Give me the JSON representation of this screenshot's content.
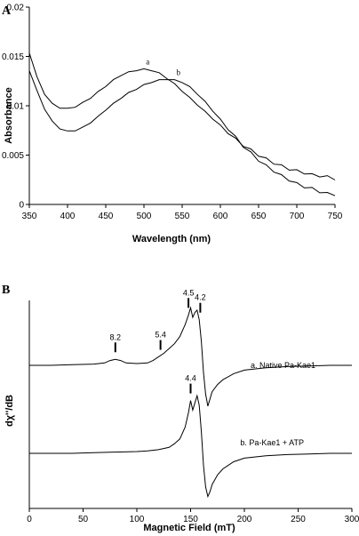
{
  "chart_data": [
    {
      "panel": "A",
      "type": "line",
      "xlabel": "Wavelength (nm)",
      "ylabel": "Absorbance",
      "xlim": [
        350,
        750
      ],
      "ylim": [
        0,
        0.02
      ],
      "xticks": [
        "350",
        "400",
        "450",
        "500",
        "550",
        "600",
        "650",
        "700",
        "750"
      ],
      "yticks": [
        "0",
        "0.005",
        "0.01",
        "0.015",
        "0.02"
      ],
      "grid": false,
      "series": [
        {
          "name": "a",
          "x": [
            350,
            360,
            370,
            380,
            390,
            400,
            410,
            420,
            430,
            440,
            450,
            460,
            470,
            480,
            490,
            500,
            510,
            520,
            530,
            540,
            550,
            560,
            570,
            580,
            590,
            600,
            610,
            620,
            630,
            640,
            650,
            660,
            670,
            680,
            690,
            700,
            710,
            720,
            730,
            740,
            750
          ],
          "values": [
            0.0154,
            0.0129,
            0.0112,
            0.0102,
            0.0098,
            0.0097,
            0.0099,
            0.0103,
            0.0108,
            0.0114,
            0.012,
            0.0126,
            0.0131,
            0.0134,
            0.0136,
            0.0137,
            0.0136,
            0.0133,
            0.0128,
            0.0122,
            0.0115,
            0.0108,
            0.0101,
            0.0094,
            0.0087,
            0.008,
            0.0073,
            0.0066,
            0.006,
            0.0055,
            0.005,
            0.0046,
            0.0042,
            0.0039,
            0.0036,
            0.0034,
            0.0032,
            0.003,
            0.0029,
            0.0028,
            0.0026
          ]
        },
        {
          "name": "b",
          "x": [
            350,
            360,
            370,
            380,
            390,
            400,
            410,
            420,
            430,
            440,
            450,
            460,
            470,
            480,
            490,
            500,
            510,
            520,
            530,
            540,
            550,
            560,
            570,
            580,
            590,
            600,
            610,
            620,
            630,
            640,
            650,
            660,
            670,
            680,
            690,
            700,
            710,
            720,
            730,
            740,
            750
          ],
          "values": [
            0.0136,
            0.0115,
            0.0097,
            0.0084,
            0.0077,
            0.0074,
            0.0075,
            0.0078,
            0.0083,
            0.0089,
            0.0096,
            0.0102,
            0.0108,
            0.0113,
            0.0117,
            0.0121,
            0.0124,
            0.0126,
            0.0127,
            0.0126,
            0.0124,
            0.0119,
            0.0112,
            0.0104,
            0.0095,
            0.0086,
            0.0077,
            0.0068,
            0.0059,
            0.0052,
            0.0045,
            0.0039,
            0.0034,
            0.0029,
            0.0025,
            0.0021,
            0.0018,
            0.0016,
            0.0013,
            0.0011,
            0.001
          ]
        }
      ],
      "annotations": [
        "a",
        "b"
      ]
    },
    {
      "panel": "B",
      "type": "line",
      "xlabel": "Magnetic Field (mT)",
      "ylabel": "dχ''/dB",
      "xlim": [
        0,
        300
      ],
      "xticks": [
        "0",
        "50",
        "100",
        "150",
        "200",
        "250",
        "300"
      ],
      "grid": false,
      "series": [
        {
          "name": "a. Native Pa-Kae1",
          "x": [
            0,
            20,
            40,
            60,
            70,
            75,
            80,
            85,
            90,
            100,
            110,
            115,
            120,
            125,
            130,
            135,
            140,
            145,
            148,
            150,
            152,
            154,
            156,
            158,
            160,
            162,
            164,
            166,
            168,
            170,
            175,
            180,
            190,
            200,
            220,
            240,
            260,
            280,
            300
          ],
          "values": [
            0,
            0,
            0.5,
            1,
            2,
            4,
            5,
            4,
            2,
            1.5,
            2,
            4,
            7,
            10,
            14,
            18,
            24,
            34,
            42,
            48,
            40,
            44,
            46,
            38,
            20,
            -6,
            -24,
            -34,
            -28,
            -22,
            -16,
            -12,
            -7,
            -4,
            -2,
            -1,
            -0.5,
            0,
            0
          ]
        },
        {
          "name": "b. Pa-Kae1 + ATP",
          "x": [
            0,
            20,
            40,
            60,
            80,
            100,
            110,
            120,
            130,
            135,
            140,
            145,
            148,
            150,
            152,
            154,
            156,
            158,
            160,
            162,
            164,
            166,
            168,
            170,
            175,
            180,
            190,
            200,
            220,
            240,
            260,
            280,
            300
          ],
          "values": [
            0,
            0,
            0,
            0.5,
            1,
            1.5,
            2,
            3,
            5,
            8,
            12,
            22,
            34,
            44,
            36,
            42,
            48,
            40,
            18,
            -10,
            -28,
            -36,
            -32,
            -26,
            -18,
            -13,
            -7,
            -4,
            -2,
            -1,
            -0.5,
            0,
            0
          ]
        }
      ],
      "peak_labels": [
        {
          "label": "8.2",
          "x": 80
        },
        {
          "label": "5.4",
          "x": 122
        },
        {
          "label": "4.5",
          "x": 148
        },
        {
          "label": "4.2",
          "x": 159
        },
        {
          "label": "4.4",
          "x": 150
        }
      ],
      "series_labels": [
        "a. Native Pa-Kae1",
        "b. Pa-Kae1 + ATP"
      ]
    }
  ],
  "panels": {
    "A": {
      "label": "A"
    },
    "B": {
      "label": "B"
    }
  }
}
